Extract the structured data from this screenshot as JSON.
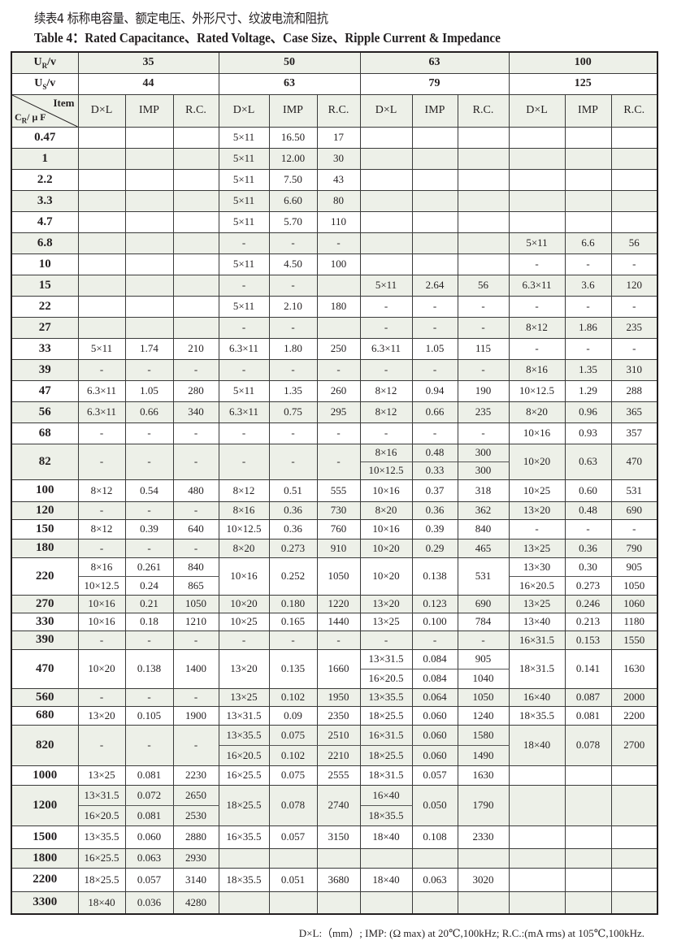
{
  "title_cn": "续表4  标称电容量、额定电压、外形尺寸、纹波电流和阻抗",
  "title_en": "Table 4：Rated Capacitance、Rated Voltage、Case Size、Ripple Current & Impedance",
  "header": {
    "ur_label": {
      "main": "U",
      "sub": "R",
      "tail": "/v"
    },
    "us_label": {
      "main": "U",
      "sub": "S",
      "tail": "/v"
    },
    "rated_voltages": [
      "35",
      "50",
      "63",
      "100"
    ],
    "surge_voltages": [
      "44",
      "63",
      "79",
      "125"
    ],
    "item_label": "Item",
    "cr_label": {
      "main": "C",
      "sub": "R",
      "tail": "/ μ F"
    },
    "columns": [
      "D×L",
      "IMP",
      "R.C."
    ]
  },
  "rows": [
    {
      "cap": "0.47",
      "g": [
        [
          "",
          "",
          ""
        ],
        [
          "5×11",
          "16.50",
          "17"
        ],
        [
          "",
          "",
          ""
        ],
        [
          "",
          "",
          ""
        ]
      ]
    },
    {
      "cap": "1",
      "g": [
        [
          "",
          "",
          ""
        ],
        [
          "5×11",
          "12.00",
          "30"
        ],
        [
          "",
          "",
          ""
        ],
        [
          "",
          "",
          ""
        ]
      ]
    },
    {
      "cap": "2.2",
      "g": [
        [
          "",
          "",
          ""
        ],
        [
          "5×11",
          "7.50",
          "43"
        ],
        [
          "",
          "",
          ""
        ],
        [
          "",
          "",
          ""
        ]
      ]
    },
    {
      "cap": "3.3",
      "g": [
        [
          "",
          "",
          ""
        ],
        [
          "5×11",
          "6.60",
          "80"
        ],
        [
          "",
          "",
          ""
        ],
        [
          "",
          "",
          ""
        ]
      ]
    },
    {
      "cap": "4.7",
      "g": [
        [
          "",
          "",
          ""
        ],
        [
          "5×11",
          "5.70",
          "110"
        ],
        [
          "",
          "",
          ""
        ],
        [
          "",
          "",
          ""
        ]
      ]
    },
    {
      "cap": "6.8",
      "g": [
        [
          "",
          "",
          ""
        ],
        [
          "-",
          "-",
          "-"
        ],
        [
          "",
          "",
          ""
        ],
        [
          "5×11",
          "6.6",
          "56"
        ]
      ]
    },
    {
      "cap": "10",
      "g": [
        [
          "",
          "",
          ""
        ],
        [
          "5×11",
          "4.50",
          "100"
        ],
        [
          "",
          "",
          ""
        ],
        [
          "-",
          "-",
          "-"
        ]
      ]
    },
    {
      "cap": "15",
      "g": [
        [
          "",
          "",
          ""
        ],
        [
          "-",
          "-",
          ""
        ],
        [
          "5×11",
          "2.64",
          "56"
        ],
        [
          "6.3×11",
          "3.6",
          "120"
        ]
      ]
    },
    {
      "cap": "22",
      "g": [
        [
          "",
          "",
          ""
        ],
        [
          "5×11",
          "2.10",
          "180"
        ],
        [
          "-",
          "-",
          "-"
        ],
        [
          "-",
          "-",
          "-"
        ]
      ]
    },
    {
      "cap": "27",
      "g": [
        [
          "",
          "",
          ""
        ],
        [
          "-",
          "-",
          ""
        ],
        [
          "-",
          "-",
          "-"
        ],
        [
          "8×12",
          "1.86",
          "235"
        ]
      ]
    },
    {
      "cap": "33",
      "g": [
        [
          "5×11",
          "1.74",
          "210"
        ],
        [
          "6.3×11",
          "1.80",
          "250"
        ],
        [
          "6.3×11",
          "1.05",
          "115"
        ],
        [
          "-",
          "-",
          "-"
        ]
      ]
    },
    {
      "cap": "39",
      "g": [
        [
          "-",
          "-",
          "-"
        ],
        [
          "-",
          "-",
          "-"
        ],
        [
          "-",
          "-",
          "-"
        ],
        [
          "8×16",
          "1.35",
          "310"
        ]
      ]
    },
    {
      "cap": "47",
      "g": [
        [
          "6.3×11",
          "1.05",
          "280"
        ],
        [
          "5×11",
          "1.35",
          "260"
        ],
        [
          "8×12",
          "0.94",
          "190"
        ],
        [
          "10×12.5",
          "1.29",
          "288"
        ]
      ]
    },
    {
      "cap": "56",
      "g": [
        [
          "6.3×11",
          "0.66",
          "340"
        ],
        [
          "6.3×11",
          "0.75",
          "295"
        ],
        [
          "8×12",
          "0.66",
          "235"
        ],
        [
          "8×20",
          "0.96",
          "365"
        ]
      ]
    },
    {
      "cap": "68",
      "g": [
        [
          "-",
          "-",
          "-"
        ],
        [
          "-",
          "-",
          "-"
        ],
        [
          "-",
          "-",
          "-"
        ],
        [
          "10×16",
          "0.93",
          "357"
        ]
      ]
    },
    {
      "cap": "82",
      "g": [
        [
          "-",
          "-",
          "-"
        ],
        [
          "-",
          "-",
          "-"
        ],
        [
          [
            "8×16",
            "10×12.5"
          ],
          [
            "0.48",
            "0.33"
          ],
          [
            "300",
            "300"
          ]
        ],
        [
          "10×20",
          "0.63",
          "470"
        ]
      ]
    },
    {
      "cap": "100",
      "g": [
        [
          "8×12",
          "0.54",
          "480"
        ],
        [
          "8×12",
          "0.51",
          "555"
        ],
        [
          "10×16",
          "0.37",
          "318"
        ],
        [
          "10×25",
          "0.60",
          "531"
        ]
      ]
    },
    {
      "cap": "120",
      "g": [
        [
          "-",
          "-",
          "-"
        ],
        [
          "8×16",
          "0.36",
          "730"
        ],
        [
          "8×20",
          "0.36",
          "362"
        ],
        [
          "13×20",
          "0.48",
          "690"
        ]
      ]
    },
    {
      "cap": "150",
      "g": [
        [
          "8×12",
          "0.39",
          "640"
        ],
        [
          "10×12.5",
          "0.36",
          "760"
        ],
        [
          "10×16",
          "0.39",
          "840"
        ],
        [
          "-",
          "-",
          "-"
        ]
      ]
    },
    {
      "cap": "180",
      "g": [
        [
          "-",
          "-",
          "-"
        ],
        [
          "8×20",
          "0.273",
          "910"
        ],
        [
          "10×20",
          "0.29",
          "465"
        ],
        [
          "13×25",
          "0.36",
          "790"
        ]
      ]
    },
    {
      "cap": "220",
      "g": [
        [
          [
            "8×16",
            "10×12.5"
          ],
          [
            "0.261",
            "0.24"
          ],
          [
            "840",
            "865"
          ]
        ],
        [
          "10×16",
          "0.252",
          "1050"
        ],
        [
          "10×20",
          "0.138",
          "531"
        ],
        [
          [
            "13×30",
            "16×20.5"
          ],
          [
            "0.30",
            "0.273"
          ],
          [
            "905",
            "1050"
          ]
        ]
      ]
    },
    {
      "cap": "270",
      "g": [
        [
          "10×16",
          "0.21",
          "1050"
        ],
        [
          "10×20",
          "0.180",
          "1220"
        ],
        [
          "13×20",
          "0.123",
          "690"
        ],
        [
          "13×25",
          "0.246",
          "1060"
        ]
      ]
    },
    {
      "cap": "330",
      "g": [
        [
          "10×16",
          "0.18",
          "1210"
        ],
        [
          "10×25",
          "0.165",
          "1440"
        ],
        [
          "13×25",
          "0.100",
          "784"
        ],
        [
          "13×40",
          "0.213",
          "1180"
        ]
      ]
    },
    {
      "cap": "390",
      "g": [
        [
          "-",
          "-",
          "-"
        ],
        [
          "-",
          "-",
          "-"
        ],
        [
          "-",
          "-",
          "-"
        ],
        [
          "16×31.5",
          "0.153",
          "1550"
        ]
      ]
    },
    {
      "cap": "470",
      "g": [
        [
          "10×20",
          "0.138",
          "1400"
        ],
        [
          "13×20",
          "0.135",
          "1660"
        ],
        [
          [
            "13×31.5",
            "16×20.5"
          ],
          [
            "0.084",
            "0.084"
          ],
          [
            "905",
            "1040"
          ]
        ],
        [
          "18×31.5",
          "0.141",
          "1630"
        ]
      ]
    },
    {
      "cap": "560",
      "g": [
        [
          "-",
          "-",
          "-"
        ],
        [
          "13×25",
          "0.102",
          "1950"
        ],
        [
          "13×35.5",
          "0.064",
          "1050"
        ],
        [
          "16×40",
          "0.087",
          "2000"
        ]
      ]
    },
    {
      "cap": "680",
      "g": [
        [
          "13×20",
          "0.105",
          "1900"
        ],
        [
          "13×31.5",
          "0.09",
          "2350"
        ],
        [
          "18×25.5",
          "0.060",
          "1240"
        ],
        [
          "18×35.5",
          "0.081",
          "2200"
        ]
      ]
    },
    {
      "cap": "820",
      "g": [
        [
          "-",
          "-",
          "-"
        ],
        [
          [
            "13×35.5",
            "16×20.5"
          ],
          [
            "0.075",
            "0.102"
          ],
          [
            "2510",
            "2210"
          ]
        ],
        [
          [
            "16×31.5",
            "18×25.5"
          ],
          [
            "0.060",
            "0.060"
          ],
          [
            "1580",
            "1490"
          ]
        ],
        [
          "18×40",
          "0.078",
          "2700"
        ]
      ]
    },
    {
      "cap": "1000",
      "g": [
        [
          "13×25",
          "0.081",
          "2230"
        ],
        [
          "16×25.5",
          "0.075",
          "2555"
        ],
        [
          "18×31.5",
          "0.057",
          "1630"
        ],
        [
          "",
          "",
          ""
        ]
      ]
    },
    {
      "cap": "1200",
      "g": [
        [
          [
            "13×31.5",
            "16×20.5"
          ],
          [
            "0.072",
            "0.081"
          ],
          [
            "2650",
            "2530"
          ]
        ],
        [
          "18×25.5",
          "0.078",
          "2740"
        ],
        [
          [
            "16×40",
            "18×35.5"
          ],
          "0.050",
          "1790"
        ],
        [
          "",
          "",
          ""
        ]
      ]
    },
    {
      "cap": "1500",
      "g": [
        [
          "13×35.5",
          "0.060",
          "2880"
        ],
        [
          "16×35.5",
          "0.057",
          "3150"
        ],
        [
          "18×40",
          "0.108",
          "2330"
        ],
        [
          "",
          "",
          ""
        ]
      ]
    },
    {
      "cap": "1800",
      "g": [
        [
          "16×25.5",
          "0.063",
          "2930"
        ],
        [
          "",
          "",
          ""
        ],
        [
          "",
          "",
          ""
        ],
        [
          "",
          "",
          ""
        ]
      ]
    },
    {
      "cap": "2200",
      "g": [
        [
          "18×25.5",
          "0.057",
          "3140"
        ],
        [
          "18×35.5",
          "0.051",
          "3680"
        ],
        [
          "18×40",
          "0.063",
          "3020"
        ],
        [
          "",
          "",
          ""
        ]
      ]
    },
    {
      "cap": "3300",
      "g": [
        [
          "18×40",
          "0.036",
          "4280"
        ],
        [
          "",
          "",
          ""
        ],
        [
          "",
          "",
          ""
        ],
        [
          "",
          "",
          ""
        ]
      ]
    }
  ],
  "footnote": "D×L:（mm）; IMP: (Ω max) at 20℃,100kHz; R.C.:(mA rms) at 105℃,100kHz."
}
